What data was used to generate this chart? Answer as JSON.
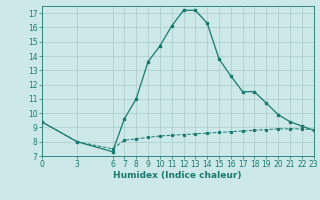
{
  "title": "",
  "xlabel": "Humidex (Indice chaleur)",
  "bg_color": "#cce8e8",
  "grid_color": "#aacccc",
  "line_color": "#1a7a6e",
  "xlim": [
    0,
    23
  ],
  "ylim": [
    7,
    17.5
  ],
  "xticks": [
    0,
    3,
    6,
    7,
    8,
    9,
    10,
    11,
    12,
    13,
    14,
    15,
    16,
    17,
    18,
    19,
    20,
    21,
    22,
    23
  ],
  "yticks": [
    7,
    8,
    9,
    10,
    11,
    12,
    13,
    14,
    15,
    16,
    17
  ],
  "line1_x": [
    0,
    3,
    6,
    7,
    8,
    9,
    10,
    11,
    12,
    13,
    14,
    15,
    16,
    17,
    18,
    19,
    20,
    21,
    22,
    23
  ],
  "line1_y": [
    9.4,
    8.0,
    7.3,
    9.6,
    11.0,
    13.6,
    14.7,
    16.1,
    17.2,
    17.2,
    16.3,
    13.8,
    12.6,
    11.5,
    11.5,
    10.7,
    9.9,
    9.4,
    9.1,
    8.8
  ],
  "line2_x": [
    0,
    3,
    6,
    7,
    8,
    9,
    10,
    11,
    12,
    13,
    14,
    15,
    16,
    17,
    18,
    19,
    20,
    21,
    22,
    23
  ],
  "line2_y": [
    9.4,
    8.0,
    7.5,
    8.1,
    8.2,
    8.3,
    8.4,
    8.45,
    8.5,
    8.55,
    8.6,
    8.65,
    8.7,
    8.75,
    8.8,
    8.85,
    8.9,
    8.9,
    8.9,
    8.85
  ],
  "tick_fontsize": 5.5,
  "xlabel_fontsize": 6.5
}
